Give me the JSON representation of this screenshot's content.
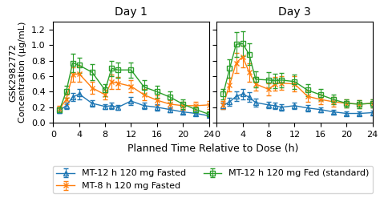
{
  "chart_data": [
    {
      "type": "line",
      "title": "Day 1",
      "xlabel": "Planned Time Relative to Dose (h)",
      "ylabel": "GSK2982772\nConcentration (μg/mL)",
      "x": [
        1,
        2,
        3,
        4,
        6,
        8,
        9,
        10,
        12,
        14,
        16,
        18,
        20,
        22,
        24
      ],
      "xlim": [
        0,
        24
      ],
      "xticks": [
        0,
        4,
        8,
        12,
        16,
        20,
        24
      ],
      "ylim": [
        0.0,
        1.3
      ],
      "yticks": [
        0.0,
        0.2,
        0.4,
        0.6,
        0.8,
        1.0,
        1.2
      ],
      "legend": "lower center",
      "series": [
        {
          "name": "MT-12 h 120 mg Fasted",
          "marker": "triangle",
          "values": [
            0.16,
            0.22,
            0.33,
            0.37,
            0.25,
            0.21,
            0.22,
            0.2,
            0.28,
            0.22,
            0.2,
            0.17,
            0.14,
            0.12,
            0.09
          ],
          "errors": [
            0.03,
            0.04,
            0.05,
            0.07,
            0.04,
            0.03,
            0.04,
            0.03,
            0.05,
            0.04,
            0.04,
            0.03,
            0.03,
            0.03,
            0.02
          ]
        },
        {
          "name": "MT-8 h 120 mg Fasted",
          "marker": "x",
          "values": [
            0.18,
            0.3,
            0.62,
            0.63,
            0.45,
            0.36,
            0.53,
            0.51,
            0.47,
            0.36,
            0.29,
            0.24,
            0.22,
            0.22,
            0.23
          ],
          "errors": [
            0.04,
            0.06,
            0.09,
            0.1,
            0.08,
            0.06,
            0.09,
            0.08,
            0.08,
            0.07,
            0.06,
            0.05,
            0.05,
            0.05,
            0.05
          ]
        },
        {
          "name": "MT-12 h 120 mg Fed (standard)",
          "marker": "square",
          "values": [
            0.17,
            0.4,
            0.77,
            0.74,
            0.65,
            0.42,
            0.7,
            0.68,
            0.68,
            0.46,
            0.4,
            0.33,
            0.24,
            0.17,
            0.11
          ],
          "errors": [
            0.03,
            0.08,
            0.12,
            0.1,
            0.1,
            0.08,
            0.1,
            0.1,
            0.1,
            0.09,
            0.08,
            0.07,
            0.06,
            0.04,
            0.03
          ]
        }
      ]
    },
    {
      "type": "line",
      "title": "Day 3",
      "x": [
        1,
        2,
        3,
        4,
        5,
        6,
        8,
        9,
        10,
        12,
        14,
        16,
        18,
        20,
        22,
        24
      ],
      "xlim": [
        0,
        24
      ],
      "xticks": [
        0,
        4,
        8,
        12,
        16,
        20,
        24
      ],
      "ylim": [
        0.0,
        1.3
      ],
      "yticks": [
        0.0,
        0.2,
        0.4,
        0.6,
        0.8,
        1.0,
        1.2
      ],
      "tick_labels": "x",
      "series": [
        {
          "name": "MT-12 h 120 mg Fasted",
          "marker": "triangle",
          "values": [
            0.22,
            0.27,
            0.34,
            0.37,
            0.33,
            0.26,
            0.23,
            0.22,
            0.2,
            0.22,
            0.19,
            0.17,
            0.14,
            0.12,
            0.12,
            0.13
          ],
          "errors": [
            0.04,
            0.05,
            0.06,
            0.07,
            0.06,
            0.05,
            0.04,
            0.04,
            0.04,
            0.04,
            0.04,
            0.03,
            0.03,
            0.03,
            0.03,
            0.03
          ]
        },
        {
          "name": "MT-8 h 120 mg Fasted",
          "marker": "x",
          "values": [
            0.23,
            0.49,
            0.77,
            0.85,
            0.65,
            0.5,
            0.43,
            0.5,
            0.51,
            0.5,
            0.34,
            0.3,
            0.27,
            0.25,
            0.24,
            0.25
          ],
          "errors": [
            0.05,
            0.09,
            0.13,
            0.14,
            0.12,
            0.09,
            0.08,
            0.09,
            0.09,
            0.1,
            0.07,
            0.06,
            0.06,
            0.05,
            0.05,
            0.05
          ]
        },
        {
          "name": "MT-12 h 120 mg Fed (standard)",
          "marker": "square",
          "values": [
            0.37,
            0.7,
            1.01,
            1.02,
            0.88,
            0.56,
            0.55,
            0.54,
            0.55,
            0.53,
            0.42,
            0.36,
            0.3,
            0.25,
            0.24,
            0.25
          ],
          "errors": [
            0.07,
            0.12,
            0.16,
            0.16,
            0.14,
            0.1,
            0.1,
            0.09,
            0.09,
            0.09,
            0.08,
            0.07,
            0.06,
            0.05,
            0.05,
            0.05
          ]
        }
      ]
    }
  ]
}
